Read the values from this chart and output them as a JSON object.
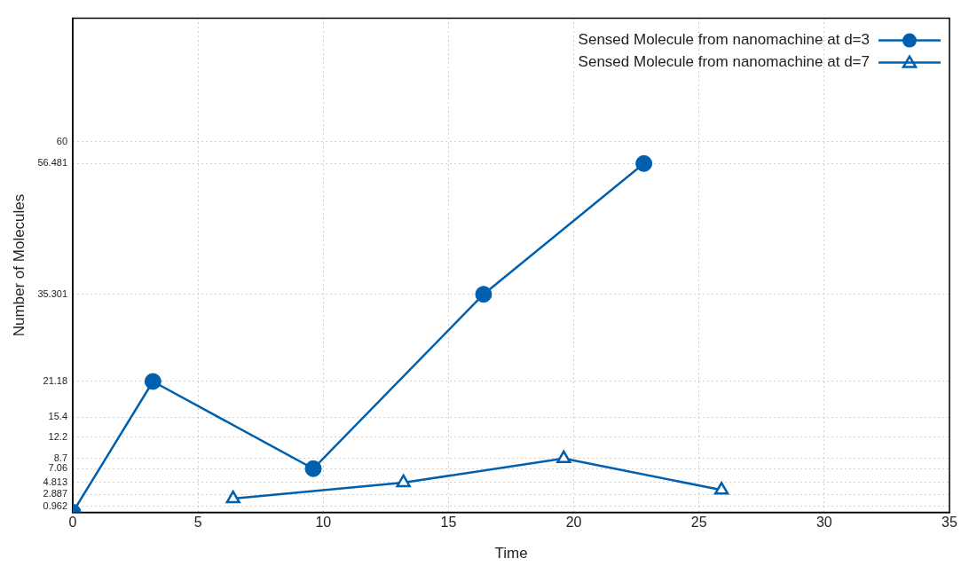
{
  "chart_data": {
    "type": "line",
    "xlabel": "Time",
    "ylabel": "Number of Molecules",
    "xlim": [
      0,
      35
    ],
    "xticks": [
      0,
      5,
      10,
      15,
      20,
      25,
      30,
      35
    ],
    "ylim": [
      0,
      80
    ],
    "yticks": [
      0.962,
      2.887,
      4.813,
      7.06,
      8.7,
      12.2,
      15.4,
      21.18,
      35.301,
      56.481,
      60
    ],
    "grid": true,
    "legend": "top right",
    "line_style": "solid",
    "series": [
      {
        "name": "Sensed Molecule from nanomachine at d=3",
        "color": "#0060ad",
        "marker": "circle",
        "x": [
          0,
          3.2,
          9.6,
          16.4,
          22.8
        ],
        "values": [
          0,
          21.18,
          7.06,
          35.301,
          56.481
        ]
      },
      {
        "name": "Sensed Molecule from nanomachine at d=7",
        "color": "#0060ad",
        "marker": "triangle",
        "x": [
          6.4,
          13.2,
          19.6,
          25.9
        ],
        "values": [
          2.2,
          4.813,
          8.7,
          3.6
        ]
      }
    ]
  }
}
